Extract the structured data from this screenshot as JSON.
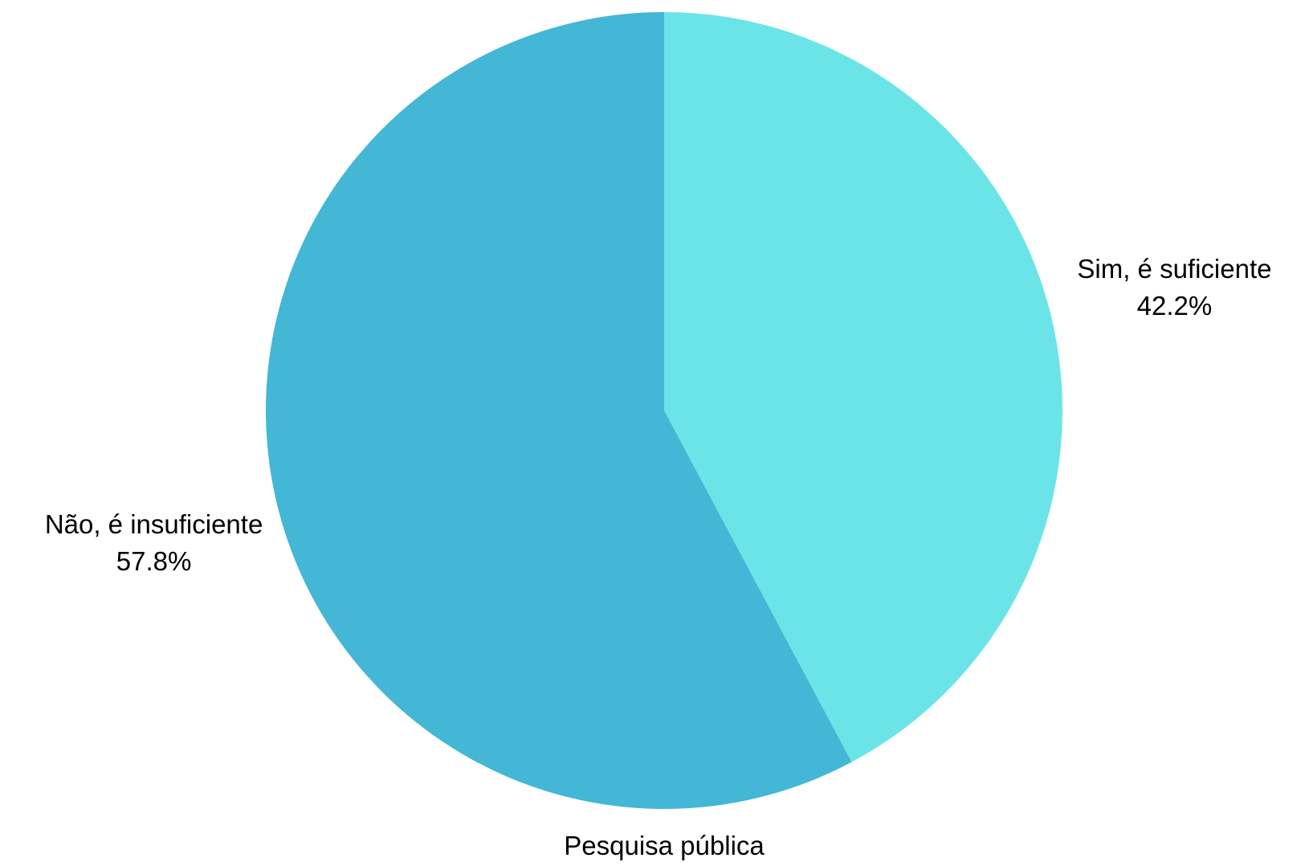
{
  "chart_data": {
    "type": "pie",
    "caption": "Pesquisa pública",
    "start_angle_deg": 0,
    "direction": "clockwise",
    "slices": [
      {
        "label": "Sim, é suficiente",
        "value": 42.2,
        "value_label": "42.2%",
        "color": "#6be4e8"
      },
      {
        "label": "Não, é insuficiente",
        "value": 57.8,
        "value_label": "57.8%",
        "color": "#43b7d5"
      }
    ],
    "legend": "none"
  }
}
